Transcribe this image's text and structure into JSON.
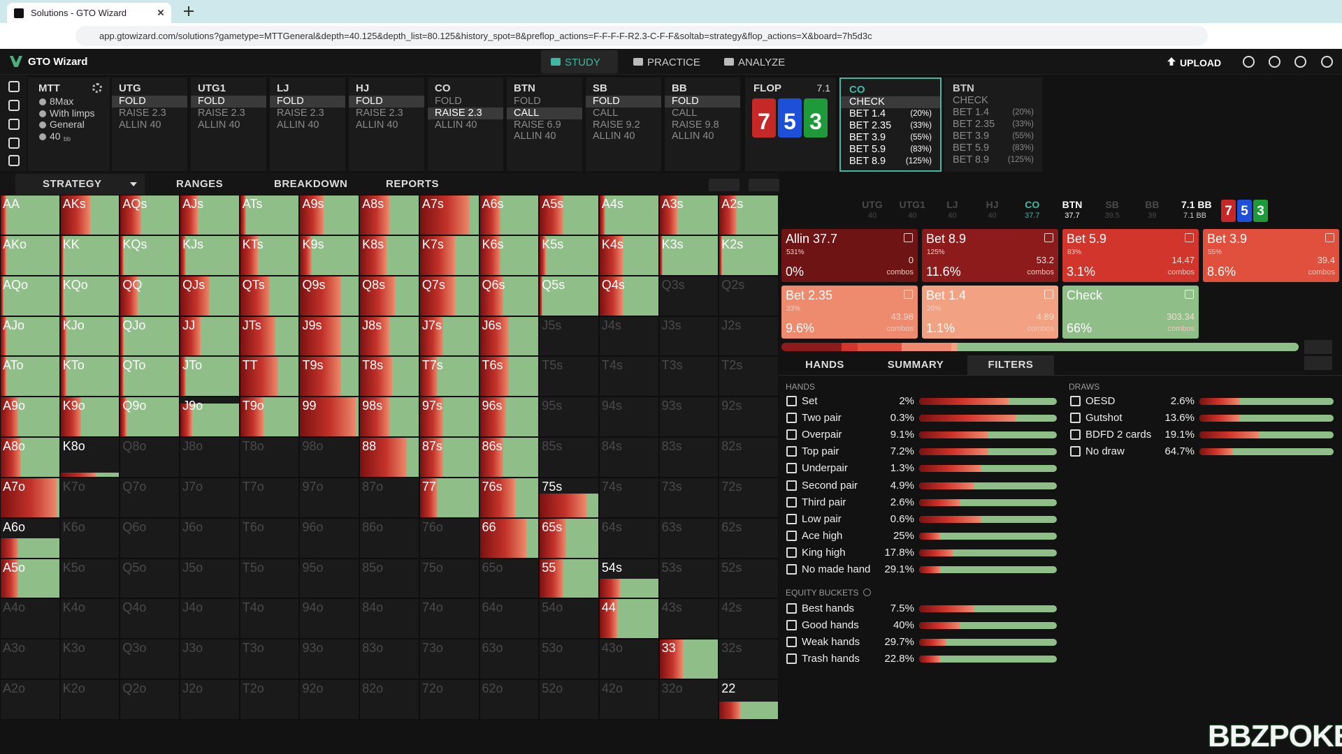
{
  "browser": {
    "tab_title": "Solutions - GTO Wizard",
    "url": "app.gtowizard.com/solutions?gametype=MTTGeneral&depth=40.125&depth_list=80.125&history_spot=8&preflop_actions=F-F-F-F-R2.3-C-F-F&soltab=strategy&flop_actions=X&board=7h5d3c"
  },
  "nav": {
    "brand": "GTO Wizard",
    "tabs": [
      "STUDY",
      "PRACTICE",
      "ANALYZE"
    ],
    "active_tab": 0,
    "upload": "UPLOAD"
  },
  "game": {
    "label": "MTT",
    "options": [
      "8Max",
      "With limps",
      "General",
      "40"
    ],
    "stack_unit": "bb"
  },
  "positions": [
    {
      "name": "UTG",
      "actions": [
        "FOLD",
        "RAISE 2.3",
        "ALLIN 40"
      ],
      "selected": 0
    },
    {
      "name": "UTG1",
      "actions": [
        "FOLD",
        "RAISE 2.3",
        "ALLIN 40"
      ],
      "selected": 0
    },
    {
      "name": "LJ",
      "actions": [
        "FOLD",
        "RAISE 2.3",
        "ALLIN 40"
      ],
      "selected": 0
    },
    {
      "name": "HJ",
      "actions": [
        "FOLD",
        "RAISE 2.3",
        "ALLIN 40"
      ],
      "selected": 0
    },
    {
      "name": "CO",
      "actions": [
        "FOLD",
        "RAISE 2.3",
        "ALLIN 40"
      ],
      "selected": 1
    },
    {
      "name": "BTN",
      "actions": [
        "FOLD",
        "CALL",
        "RAISE 6.9",
        "ALLIN 40"
      ],
      "selected": 1
    },
    {
      "name": "SB",
      "actions": [
        "FOLD",
        "CALL",
        "RAISE 9.2",
        "ALLIN 40"
      ],
      "selected": 0
    },
    {
      "name": "BB",
      "actions": [
        "FOLD",
        "CALL",
        "RAISE 9.8",
        "ALLIN 40"
      ],
      "selected": 0
    }
  ],
  "flop": {
    "label": "FLOP",
    "pot": "7.1",
    "cards": [
      {
        "rank": "7",
        "color": "#c62828"
      },
      {
        "rank": "5",
        "color": "#1e4fd8"
      },
      {
        "rank": "3",
        "color": "#1e9a3a"
      }
    ]
  },
  "postflop": [
    {
      "name": "CO",
      "active": true,
      "actions": [
        {
          "label": "CHECK"
        },
        {
          "label": "BET 1.4",
          "pct": "(20%)"
        },
        {
          "label": "BET 2.35",
          "pct": "(33%)"
        },
        {
          "label": "BET 3.9",
          "pct": "(55%)"
        },
        {
          "label": "BET 5.9",
          "pct": "(83%)"
        },
        {
          "label": "BET 8.9",
          "pct": "(125%)"
        }
      ]
    },
    {
      "name": "BTN",
      "active": false,
      "actions": [
        {
          "label": "CHECK"
        },
        {
          "label": "BET 1.4",
          "pct": "(20%)"
        },
        {
          "label": "BET 2.35",
          "pct": "(33%)"
        },
        {
          "label": "BET 3.9",
          "pct": "(55%)"
        },
        {
          "label": "BET 5.9",
          "pct": "(83%)"
        },
        {
          "label": "BET 8.9",
          "pct": "(125%)"
        }
      ]
    }
  ],
  "tabs": [
    "STRATEGY",
    "RANGES",
    "BREAKDOWN",
    "REPORTS"
  ],
  "matrix": {
    "hands": [
      [
        "AA",
        "AKs",
        "AQs",
        "AJs",
        "ATs",
        "A9s",
        "A8s",
        "A7s",
        "A6s",
        "A5s",
        "A4s",
        "A3s",
        "A2s"
      ],
      [
        "AKo",
        "KK",
        "KQs",
        "KJs",
        "KTs",
        "K9s",
        "K8s",
        "K7s",
        "K6s",
        "K5s",
        "K4s",
        "K3s",
        "K2s"
      ],
      [
        "AQo",
        "KQo",
        "QQ",
        "QJs",
        "QTs",
        "Q9s",
        "Q8s",
        "Q7s",
        "Q6s",
        "Q5s",
        "Q4s",
        "Q3s",
        "Q2s"
      ],
      [
        "AJo",
        "KJo",
        "QJo",
        "JJ",
        "JTs",
        "J9s",
        "J8s",
        "J7s",
        "J6s",
        "J5s",
        "J4s",
        "J3s",
        "J2s"
      ],
      [
        "ATo",
        "KTo",
        "QTo",
        "JTo",
        "TT",
        "T9s",
        "T8s",
        "T7s",
        "T6s",
        "T5s",
        "T4s",
        "T3s",
        "T2s"
      ],
      [
        "A9o",
        "K9o",
        "Q9o",
        "J9o",
        "T9o",
        "99",
        "98s",
        "97s",
        "96s",
        "95s",
        "94s",
        "93s",
        "92s"
      ],
      [
        "A8o",
        "K8o",
        "Q8o",
        "J8o",
        "T8o",
        "98o",
        "88",
        "87s",
        "86s",
        "85s",
        "84s",
        "83s",
        "82s"
      ],
      [
        "A7o",
        "K7o",
        "Q7o",
        "J7o",
        "T7o",
        "97o",
        "87o",
        "77",
        "76s",
        "75s",
        "74s",
        "73s",
        "72s"
      ],
      [
        "A6o",
        "K6o",
        "Q6o",
        "J6o",
        "T6o",
        "96o",
        "86o",
        "76o",
        "66",
        "65s",
        "64s",
        "63s",
        "62s"
      ],
      [
        "A5o",
        "K5o",
        "Q5o",
        "J5o",
        "T5o",
        "95o",
        "85o",
        "75o",
        "65o",
        "55",
        "54s",
        "53s",
        "52s"
      ],
      [
        "A4o",
        "K4o",
        "Q4o",
        "J4o",
        "T4o",
        "94o",
        "84o",
        "74o",
        "64o",
        "54o",
        "44",
        "43s",
        "42s"
      ],
      [
        "A3o",
        "K3o",
        "Q3o",
        "J3o",
        "T3o",
        "93o",
        "83o",
        "73o",
        "63o",
        "53o",
        "43o",
        "33",
        "32s"
      ],
      [
        "A2o",
        "K2o",
        "Q2o",
        "J2o",
        "T2o",
        "92o",
        "82o",
        "72o",
        "62o",
        "52o",
        "42o",
        "32o",
        "22"
      ]
    ],
    "weight": [
      [
        1,
        1,
        1,
        1,
        1,
        1,
        1,
        1,
        1,
        1,
        1,
        1,
        1
      ],
      [
        1,
        1,
        1,
        1,
        1,
        1,
        1,
        1,
        1,
        1,
        1,
        1,
        1
      ],
      [
        1,
        1,
        1,
        1,
        1,
        1,
        1,
        1,
        1,
        1,
        1,
        0,
        0
      ],
      [
        1,
        1,
        1,
        1,
        1,
        1,
        1,
        1,
        1,
        0,
        0,
        0,
        0
      ],
      [
        1,
        1,
        1,
        1,
        1,
        1,
        1,
        1,
        1,
        0,
        0,
        0,
        0
      ],
      [
        1,
        1,
        1,
        0.85,
        1,
        1,
        1,
        1,
        1,
        0,
        0,
        0,
        0
      ],
      [
        1,
        0.1,
        0,
        0,
        0,
        0,
        1,
        1,
        1,
        0,
        0,
        0,
        0
      ],
      [
        1,
        0,
        0,
        0,
        0,
        0,
        0,
        1,
        1,
        0.6,
        0,
        0,
        0
      ],
      [
        0.5,
        0,
        0,
        0,
        0,
        0,
        0,
        0,
        1,
        1,
        0,
        0,
        0
      ],
      [
        1,
        0,
        0,
        0,
        0,
        0,
        0,
        0,
        0,
        1,
        0.5,
        0,
        0
      ],
      [
        0,
        0,
        0,
        0,
        0,
        0,
        0,
        0,
        0,
        0,
        1,
        0,
        0
      ],
      [
        0,
        0,
        0,
        0,
        0,
        0,
        0,
        0,
        0,
        0,
        0,
        1,
        0
      ],
      [
        0,
        0,
        0,
        0,
        0,
        0,
        0,
        0,
        0,
        0,
        0,
        0,
        0.45
      ]
    ],
    "bet_share": [
      [
        0.1,
        0.5,
        0.35,
        0.3,
        0.1,
        0.4,
        0.5,
        0.85,
        0.35,
        0.4,
        0.1,
        0.3,
        0.3
      ],
      [
        0.1,
        0.05,
        0.05,
        0.1,
        0.3,
        0.2,
        0.45,
        0.6,
        0.35,
        0.1,
        0.4,
        0.05,
        0.05
      ],
      [
        0.05,
        0.05,
        0.3,
        0.5,
        0.5,
        0.7,
        0.6,
        0.6,
        0.4,
        0.05,
        0.4,
        0,
        0
      ],
      [
        0.1,
        0.1,
        0.05,
        0.35,
        0.6,
        0.7,
        0.5,
        0.4,
        0.5,
        0,
        0,
        0,
        0
      ],
      [
        0.1,
        0.1,
        0.05,
        0.1,
        0.65,
        0.7,
        0.55,
        0.3,
        0.5,
        0,
        0,
        0,
        0
      ],
      [
        0.3,
        0.35,
        0.1,
        0.2,
        0.4,
        0.95,
        0.5,
        0.4,
        0.45,
        0,
        0,
        0,
        0
      ],
      [
        0.35,
        0.6,
        0,
        0,
        0,
        0,
        0.8,
        0.4,
        0.4,
        0,
        0,
        0,
        0
      ],
      [
        0.95,
        0,
        0,
        0,
        0,
        0,
        0,
        0.3,
        0.6,
        0.8,
        0,
        0,
        0
      ],
      [
        0.3,
        0,
        0,
        0,
        0,
        0,
        0,
        0,
        0.8,
        0.45,
        0,
        0,
        0
      ],
      [
        0.3,
        0,
        0,
        0,
        0,
        0,
        0,
        0,
        0,
        0.4,
        0.35,
        0,
        0
      ],
      [
        0,
        0,
        0,
        0,
        0,
        0,
        0,
        0,
        0,
        0,
        0.3,
        0,
        0
      ],
      [
        0,
        0,
        0,
        0,
        0,
        0,
        0,
        0,
        0,
        0,
        0,
        0.4,
        0
      ],
      [
        0,
        0,
        0,
        0,
        0,
        0,
        0,
        0,
        0,
        0,
        0,
        0,
        0.35
      ]
    ]
  },
  "seats": [
    {
      "name": "UTG",
      "stack": 40
    },
    {
      "name": "UTG1",
      "stack": 40
    },
    {
      "name": "LJ",
      "stack": 40
    },
    {
      "name": "HJ",
      "stack": 40
    },
    {
      "name": "CO",
      "stack": 37.7,
      "state": "active"
    },
    {
      "name": "BTN",
      "stack": 37.7,
      "state": "next"
    },
    {
      "name": "SB",
      "stack": 39.5
    },
    {
      "name": "BB",
      "stack": 39
    }
  ],
  "pot": {
    "main": "7.1 BB",
    "sub": "7.1 BB"
  },
  "combos_label": "combos",
  "actions": [
    {
      "name": "Allin 37.7",
      "size": "531%",
      "combos": 0,
      "freq": 0,
      "freq_label": "0%",
      "color": "#6e1414"
    },
    {
      "name": "Bet 8.9",
      "size": "125%",
      "combos": 53.2,
      "freq": 11.6,
      "freq_label": "11.6%",
      "color": "#8e1b1b"
    },
    {
      "name": "Bet 5.9",
      "size": "83%",
      "combos": 14.47,
      "freq": 3.1,
      "freq_label": "3.1%",
      "color": "#d2352b"
    },
    {
      "name": "Bet 3.9",
      "size": "55%",
      "combos": 39.4,
      "freq": 8.6,
      "freq_label": "8.6%",
      "color": "#e0503c"
    },
    {
      "name": "Bet 2.35",
      "size": "33%",
      "combos": 43.98,
      "freq": 9.6,
      "freq_label": "9.6%",
      "color": "#ee8b6e"
    },
    {
      "name": "Bet 1.4",
      "size": "20%",
      "combos": 4.89,
      "freq": 1.1,
      "freq_label": "1.1%",
      "color": "#f2a283"
    },
    {
      "name": "Check",
      "combos": 303.34,
      "freq": 66,
      "freq_label": "66%",
      "color": "#8fbe88"
    }
  ],
  "panel_tabs": [
    "HANDS",
    "SUMMARY",
    "FILTERS"
  ],
  "active_panel_tab": 2,
  "filters": {
    "hands_title": "HANDS",
    "hands": [
      {
        "label": "Set",
        "pct": "2%",
        "bet_share": 0.65
      },
      {
        "label": "Two pair",
        "pct": "0.3%",
        "bet_share": 0.7
      },
      {
        "label": "Overpair",
        "pct": "9.1%",
        "bet_share": 0.5
      },
      {
        "label": "Top pair",
        "pct": "7.2%",
        "bet_share": 0.5
      },
      {
        "label": "Underpair",
        "pct": "1.3%",
        "bet_share": 0.45
      },
      {
        "label": "Second pair",
        "pct": "4.9%",
        "bet_share": 0.4
      },
      {
        "label": "Third pair",
        "pct": "2.6%",
        "bet_share": 0.3
      },
      {
        "label": "Low pair",
        "pct": "0.6%",
        "bet_share": 0.45
      },
      {
        "label": "Ace high",
        "pct": "25%",
        "bet_share": 0.15
      },
      {
        "label": "King high",
        "pct": "17.8%",
        "bet_share": 0.25
      },
      {
        "label": "No made hand",
        "pct": "29.1%",
        "bet_share": 0.15
      }
    ],
    "equity_title": "EQUITY BUCKETS",
    "equity": [
      {
        "label": "Best hands",
        "pct": "7.5%",
        "bet_share": 0.4
      },
      {
        "label": "Good hands",
        "pct": "40%",
        "bet_share": 0.3
      },
      {
        "label": "Weak hands",
        "pct": "29.7%",
        "bet_share": 0.2
      },
      {
        "label": "Trash hands",
        "pct": "22.8%",
        "bet_share": 0.15
      }
    ],
    "draws_title": "DRAWS",
    "draws": [
      {
        "label": "OESD",
        "pct": "2.6%",
        "bet_share": 0.3
      },
      {
        "label": "Gutshot",
        "pct": "13.6%",
        "bet_share": 0.3
      },
      {
        "label": "BDFD 2 cards",
        "pct": "19.1%",
        "bet_share": 0.45
      },
      {
        "label": "No draw",
        "pct": "64.7%",
        "bet_share": 0.25
      }
    ]
  },
  "watermark": "BBZPOKER"
}
